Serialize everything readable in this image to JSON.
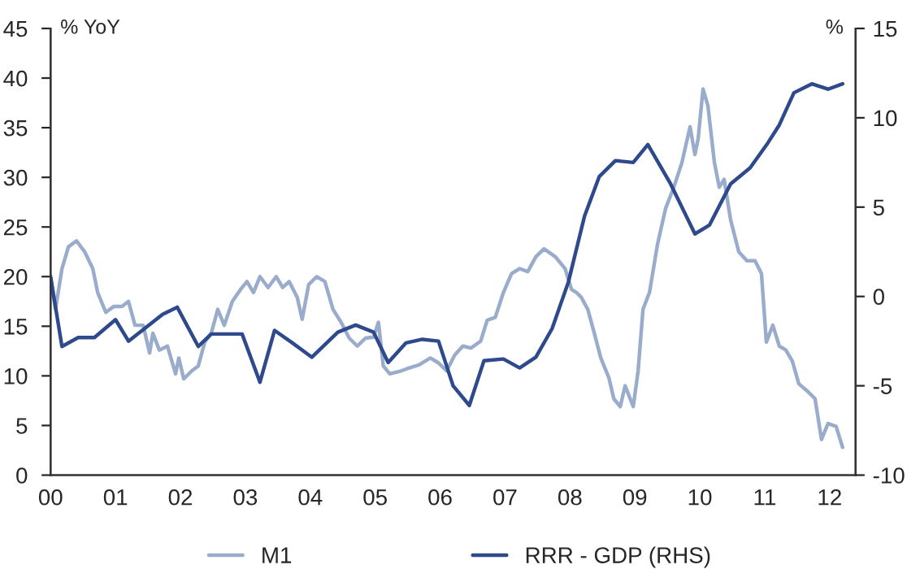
{
  "chart_data": {
    "type": "line",
    "ylabel": "% YoY",
    "y2label": "%",
    "xlim": [
      2000,
      2012.4
    ],
    "xticks": [
      {
        "value": 2000,
        "label": "00"
      },
      {
        "value": 2001,
        "label": "01"
      },
      {
        "value": 2002,
        "label": "02"
      },
      {
        "value": 2003,
        "label": "03"
      },
      {
        "value": 2004,
        "label": "04"
      },
      {
        "value": 2005,
        "label": "05"
      },
      {
        "value": 2006,
        "label": "06"
      },
      {
        "value": 2007,
        "label": "07"
      },
      {
        "value": 2008,
        "label": "08"
      },
      {
        "value": 2009,
        "label": "09"
      },
      {
        "value": 2010,
        "label": "10"
      },
      {
        "value": 2011,
        "label": "11"
      },
      {
        "value": 2012,
        "label": "12"
      }
    ],
    "ylim": [
      0,
      45
    ],
    "yticks": [
      0,
      5,
      10,
      15,
      20,
      25,
      30,
      35,
      40,
      45
    ],
    "y2lim": [
      -10,
      15
    ],
    "y2ticks": [
      -10,
      -5,
      0,
      5,
      10,
      15
    ],
    "grid": false,
    "legend": "bottom",
    "marker": "none",
    "line_style": "solid",
    "series": [
      {
        "name": "M1",
        "color": "#9aaccc",
        "x": [
          2000.0,
          2000.075,
          2000.175,
          2000.275,
          2000.4,
          2000.525,
          2000.65,
          2000.725,
          2000.85,
          2000.975,
          2001.1,
          2001.2,
          2001.3,
          2001.425,
          2001.525,
          2001.575,
          2001.675,
          2001.8,
          2001.925,
          2001.975,
          2002.05,
          2002.175,
          2002.275,
          2002.375,
          2002.475,
          2002.575,
          2002.675,
          2002.8,
          2002.925,
          2003.025,
          2003.125,
          2003.225,
          2003.35,
          2003.475,
          2003.575,
          2003.675,
          2003.8,
          2003.875,
          2003.975,
          2004.1,
          2004.225,
          2004.35,
          2004.475,
          2004.6,
          2004.725,
          2004.85,
          2004.975,
          2005.05,
          2005.125,
          2005.225,
          2005.4,
          2005.525,
          2005.675,
          2005.85,
          2005.975,
          2006.1,
          2006.225,
          2006.35,
          2006.475,
          2006.625,
          2006.725,
          2006.85,
          2006.975,
          2007.1,
          2007.225,
          2007.35,
          2007.475,
          2007.6,
          2007.775,
          2007.925,
          2008.025,
          2008.1,
          2008.175,
          2008.275,
          2008.375,
          2008.475,
          2008.6,
          2008.675,
          2008.775,
          2008.85,
          2008.975,
          2009.05,
          2009.125,
          2009.225,
          2009.35,
          2009.475,
          2009.6,
          2009.725,
          2009.85,
          2009.925,
          2009.975,
          2010.05,
          2010.125,
          2010.225,
          2010.3,
          2010.375,
          2010.475,
          2010.6,
          2010.725,
          2010.85,
          2010.95,
          2011.025,
          2011.125,
          2011.225,
          2011.325,
          2011.425,
          2011.525,
          2011.65,
          2011.775,
          2011.875,
          2011.975,
          2012.1,
          2012.2
        ],
        "values": [
          20.0,
          16.7,
          20.8,
          23.0,
          23.6,
          22.5,
          20.8,
          18.4,
          16.4,
          17.0,
          17.0,
          17.5,
          15.1,
          15.1,
          12.3,
          14.3,
          12.6,
          13.0,
          10.2,
          11.8,
          9.7,
          10.5,
          11.0,
          13.4,
          14.3,
          16.7,
          15.1,
          17.5,
          18.7,
          19.5,
          18.4,
          20.0,
          18.9,
          20.0,
          18.9,
          19.5,
          17.9,
          15.7,
          19.2,
          20.0,
          19.5,
          16.7,
          15.4,
          13.8,
          13.0,
          13.8,
          13.9,
          15.4,
          11.0,
          10.2,
          10.5,
          10.8,
          11.1,
          11.8,
          11.3,
          10.5,
          12.1,
          13.0,
          12.8,
          13.5,
          15.6,
          15.9,
          18.4,
          20.3,
          20.8,
          20.5,
          22.0,
          22.8,
          22.0,
          20.8,
          18.7,
          18.4,
          17.9,
          16.7,
          14.3,
          11.8,
          9.8,
          7.7,
          6.9,
          9.0,
          6.9,
          10.5,
          16.7,
          18.4,
          23.3,
          26.9,
          29.0,
          31.5,
          35.1,
          32.3,
          33.9,
          38.9,
          37.2,
          31.5,
          29.0,
          29.8,
          25.7,
          22.5,
          21.6,
          21.6,
          20.3,
          13.4,
          15.1,
          13.0,
          12.6,
          11.5,
          9.2,
          8.5,
          7.7,
          3.6,
          5.2,
          4.9,
          2.8
        ]
      },
      {
        "name": "RRR - GDP (RHS)",
        "color": "#2e4a8c",
        "axis": "y2",
        "x": [
          2000.0,
          2000.175,
          2000.425,
          2000.675,
          2001.0,
          2001.2,
          2001.725,
          2001.95,
          2002.275,
          2002.475,
          2002.95,
          2003.225,
          2003.45,
          2003.725,
          2004.025,
          2004.425,
          2004.7,
          2004.975,
          2005.2,
          2005.475,
          2005.725,
          2005.975,
          2006.2,
          2006.45,
          2006.675,
          2006.975,
          2007.225,
          2007.475,
          2007.725,
          2007.975,
          2008.225,
          2008.45,
          2008.7,
          2008.975,
          2009.2,
          2009.55,
          2009.925,
          2010.15,
          2010.475,
          2010.775,
          2011.05,
          2011.225,
          2011.45,
          2011.725,
          2011.975,
          2012.2
        ],
        "values": [
          1.1,
          -2.8,
          -2.3,
          -2.3,
          -1.3,
          -2.5,
          -1.0,
          -0.6,
          -2.8,
          -2.1,
          -2.1,
          -4.8,
          -1.9,
          -2.6,
          -3.4,
          -2.0,
          -1.6,
          -2.0,
          -3.7,
          -2.6,
          -2.4,
          -2.5,
          -5.0,
          -6.1,
          -3.6,
          -3.5,
          -4.0,
          -3.4,
          -1.8,
          0.8,
          4.5,
          6.7,
          7.6,
          7.5,
          8.5,
          6.3,
          3.5,
          4.0,
          6.3,
          7.2,
          8.6,
          9.6,
          11.4,
          11.9,
          11.6,
          11.9
        ]
      }
    ]
  }
}
